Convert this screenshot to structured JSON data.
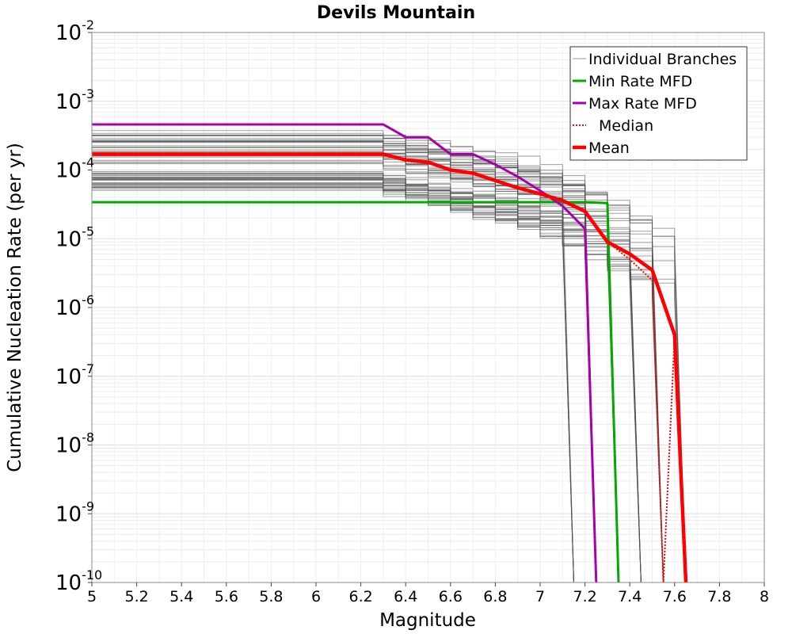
{
  "chart_data": {
    "type": "line",
    "title": "Devils Mountain",
    "xlabel": "Magnitude",
    "ylabel": "Cumulative Nucleation Rate (per yr)",
    "xlim": [
      5,
      8
    ],
    "ylim": [
      1e-10,
      0.01
    ],
    "y_scale": "log",
    "grid": true,
    "legend_position": "top-right",
    "x_ticks": [
      "5",
      "5.2",
      "5.4",
      "5.6",
      "5.8",
      "6",
      "6.2",
      "6.4",
      "6.6",
      "6.8",
      "7",
      "7.2",
      "7.4",
      "7.6",
      "7.8",
      "8"
    ],
    "y_ticks": [
      {
        "base": "10",
        "exp": "-2"
      },
      {
        "base": "10",
        "exp": "-3"
      },
      {
        "base": "10",
        "exp": "-4"
      },
      {
        "base": "10",
        "exp": "-5"
      },
      {
        "base": "10",
        "exp": "-6"
      },
      {
        "base": "10",
        "exp": "-7"
      },
      {
        "base": "10",
        "exp": "-8"
      },
      {
        "base": "10",
        "exp": "-9"
      },
      {
        "base": "10",
        "exp": "-10"
      }
    ],
    "series": [
      {
        "name": "Individual Branches",
        "color": "#505050",
        "style": "thin",
        "note_sample_count": 60,
        "rate_range": [
          5e-05,
          0.0004
        ],
        "cutoff_magnitudes": [
          7.15,
          7.25,
          7.35,
          7.45,
          7.55,
          7.65
        ]
      },
      {
        "name": "Min Rate MFD",
        "color": "#00aa00",
        "x": [
          5,
          6.3,
          6.4,
          6.5,
          6.6,
          6.7,
          6.8,
          6.9,
          7.0,
          7.1,
          7.2,
          7.3,
          7.35
        ],
        "y": [
          3.4e-05,
          3.4e-05,
          3.4e-05,
          3.4e-05,
          3.4e-05,
          3.4e-05,
          3.4e-05,
          3.4e-05,
          3.4e-05,
          3.4e-05,
          3.4e-05,
          3.3e-05,
          1e-10
        ]
      },
      {
        "name": "Max Rate MFD",
        "color": "#aa00aa",
        "x": [
          5,
          6.3,
          6.4,
          6.5,
          6.6,
          6.7,
          6.8,
          6.9,
          7.0,
          7.1,
          7.2,
          7.25
        ],
        "y": [
          0.00046,
          0.00046,
          0.0003,
          0.0003,
          0.00017,
          0.00017,
          0.00012,
          8e-05,
          5e-05,
          3e-05,
          1.4e-05,
          1e-10
        ]
      },
      {
        "name": "Median",
        "color": "#ff0000",
        "style": "dotted",
        "x": [
          5,
          6.3,
          6.4,
          6.5,
          6.6,
          6.7,
          6.8,
          6.9,
          7.0,
          7.1,
          7.2,
          7.3,
          7.4,
          7.5,
          7.55,
          7.6,
          7.65
        ],
        "y": [
          0.00017,
          0.00017,
          0.000135,
          0.000125,
          0.0001,
          9e-05,
          7e-05,
          5.5e-05,
          4.5e-05,
          3.6e-05,
          2.5e-05,
          9e-06,
          5e-06,
          2.5e-06,
          1e-10,
          4e-07,
          1e-10
        ]
      },
      {
        "name": "Mean",
        "color": "#ff0000",
        "style": "thick",
        "x": [
          5,
          6.3,
          6.4,
          6.5,
          6.6,
          6.7,
          6.8,
          6.9,
          7.0,
          7.1,
          7.2,
          7.3,
          7.4,
          7.5,
          7.6,
          7.65
        ],
        "y": [
          0.00017,
          0.00017,
          0.00014,
          0.00013,
          0.0001,
          9e-05,
          7e-05,
          5.5e-05,
          4.5e-05,
          3.6e-05,
          2.5e-05,
          9e-06,
          6e-06,
          3.5e-06,
          4e-07,
          1e-10
        ]
      }
    ]
  }
}
